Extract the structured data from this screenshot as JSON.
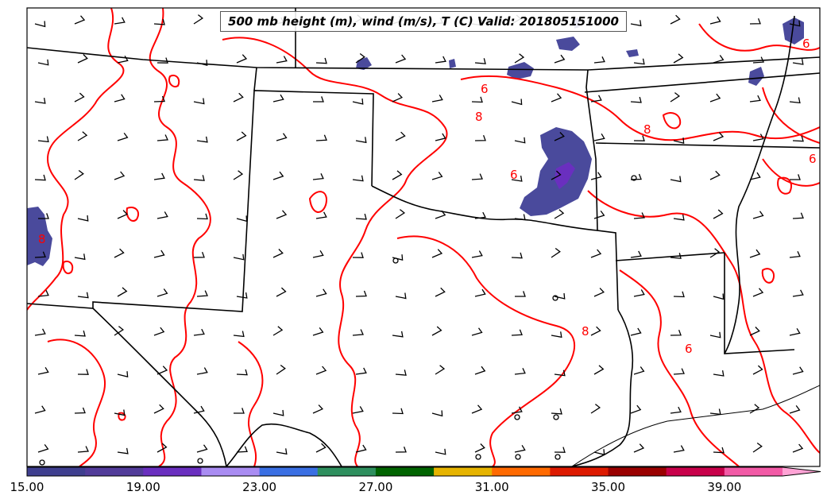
{
  "title": "500 mb height (m), wind (m/s), T (C) Valid: 201805151000",
  "colorbar": {
    "ticks": [
      "15.00",
      "19.00",
      "23.00",
      "27.00",
      "31.00",
      "35.00",
      "39.00"
    ],
    "colors": [
      "#3f3f8f",
      "#523c9a",
      "#6a2fbf",
      "#a98cf2",
      "#3a6fe3",
      "#2e8f5e",
      "#006400",
      "#e6b400",
      "#ff6a00",
      "#dd1a00",
      "#9a0000",
      "#c8004a",
      "#f25aa6",
      "#ffa3d5"
    ]
  },
  "contour_labels": [
    "6",
    "8",
    "6",
    "8",
    "6",
    "8",
    "6",
    "6",
    "8"
  ],
  "colors": {
    "contour": "#ff0000",
    "boundary": "#000000",
    "shading": "#4a4a9c"
  }
}
